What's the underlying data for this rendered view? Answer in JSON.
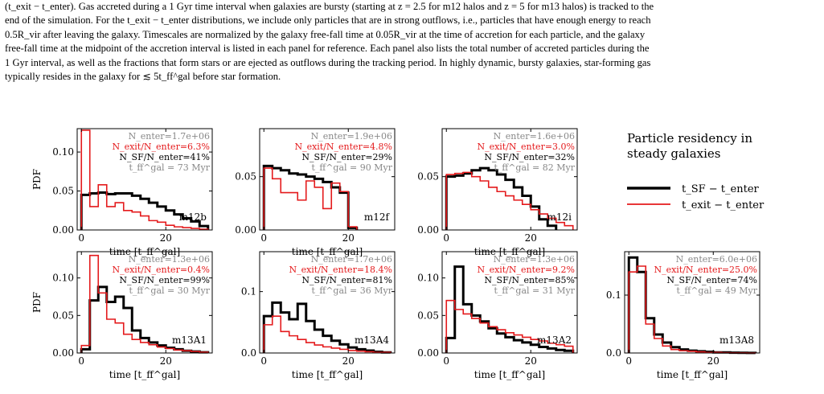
{
  "caption": {
    "lines": [
      "(t_exit − t_enter). Gas accreted during a 1 Gyr time interval when galaxies are bursty (starting at z = 2.5 for m12 halos and z = 5 for m13 halos) is tracked to the",
      "end of the simulation. For the t_exit − t_enter distributions, we include only particles that are in strong outflows, i.e., particles that have enough energy to reach",
      "0.5R_vir after leaving the galaxy. Timescales are normalized by the galaxy free-fall time at 0.05R_vir at the time of accretion for each particle, and the galaxy",
      "free-fall time at the midpoint of the accretion interval is listed in each panel for reference. Each panel also lists the total number of accreted particles during the",
      "1 Gyr interval, as well as the fractions that form stars or are ejected as outflows during the tracking period. In highly dynamic, bursty galaxies, star-forming gas",
      "typically resides in the galaxy for ≲ 5t_ff^gal before star formation."
    ]
  },
  "legend": {
    "title_line1": "Particle residency in",
    "title_line2": "steady galaxies",
    "entries": [
      {
        "label": "t_SF − t_enter",
        "color": "#000000"
      },
      {
        "label": "t_exit − t_enter",
        "color": "#e41a1c"
      }
    ]
  },
  "axes": {
    "xlabel": "time [t_ff^gal]",
    "ylabel": "PDF"
  },
  "chart_data": [
    {
      "type": "line",
      "panel": "m12b",
      "ylim": [
        0,
        0.13
      ],
      "yticks": [
        "0.00",
        "0.05",
        "0.10"
      ],
      "ytick_values": [
        0,
        0.05,
        0.1
      ],
      "xlim": [
        -1,
        31
      ],
      "xticks": [
        "0",
        "20"
      ],
      "n_enter": "N_enter=1.7e+06",
      "exit_frac": "N_exit/N_enter=6.3%",
      "sf_frac": "N_SF/N_enter=41%",
      "tff": "t_ff^gal = 73 Myr",
      "series": [
        {
          "name": "t_SF − t_enter",
          "color": "#000000",
          "edges": [
            0,
            2,
            4,
            6,
            8,
            10,
            12,
            14,
            16,
            18,
            20,
            22,
            24,
            26,
            28,
            30
          ],
          "values": [
            0.045,
            0.047,
            0.048,
            0.046,
            0.047,
            0.047,
            0.044,
            0.04,
            0.035,
            0.03,
            0.025,
            0.02,
            0.015,
            0.011,
            0.005
          ]
        },
        {
          "name": "t_exit − t_enter",
          "color": "#e41a1c",
          "edges": [
            0,
            2,
            4,
            6,
            8,
            10,
            12,
            14,
            16,
            18,
            20,
            22,
            24,
            26,
            28,
            30
          ],
          "values": [
            0.128,
            0.03,
            0.058,
            0.03,
            0.035,
            0.025,
            0.023,
            0.018,
            0.012,
            0.01,
            0.006,
            0.004,
            0.003,
            0.002,
            0.001
          ]
        }
      ]
    },
    {
      "type": "line",
      "panel": "m12f",
      "ylim": [
        0,
        0.095
      ],
      "yticks": [
        "0.00",
        "0.05"
      ],
      "ytick_values": [
        0,
        0.05
      ],
      "xlim": [
        -1,
        31
      ],
      "xticks": [
        "0",
        "20"
      ],
      "n_enter": "N_enter=1.9e+06",
      "exit_frac": "N_exit/N_enter=4.8%",
      "sf_frac": "N_SF/N_enter=29%",
      "tff": "t_ff^gal = 90 Myr",
      "series": [
        {
          "name": "t_SF − t_enter",
          "color": "#000000",
          "edges": [
            0,
            2,
            4,
            6,
            8,
            10,
            12,
            14,
            16,
            18,
            20,
            22
          ],
          "values": [
            0.06,
            0.058,
            0.056,
            0.053,
            0.052,
            0.05,
            0.048,
            0.045,
            0.04,
            0.035,
            0.002
          ]
        },
        {
          "name": "t_exit − t_enter",
          "color": "#e41a1c",
          "edges": [
            0,
            2,
            4,
            6,
            8,
            10,
            12,
            14,
            16,
            18,
            20,
            22
          ],
          "values": [
            0.058,
            0.048,
            0.035,
            0.035,
            0.028,
            0.046,
            0.04,
            0.02,
            0.044,
            0.036,
            0.003
          ]
        }
      ]
    },
    {
      "type": "line",
      "panel": "m12i",
      "ylim": [
        0,
        0.095
      ],
      "yticks": [
        "0.00",
        "0.05"
      ],
      "ytick_values": [
        0,
        0.05
      ],
      "xlim": [
        -1,
        31
      ],
      "xticks": [
        "0",
        "20"
      ],
      "n_enter": "N_enter=1.6e+06",
      "exit_frac": "N_exit/N_enter=3.0%",
      "sf_frac": "N_SF/N_enter=32%",
      "tff": "t_ff^gal = 82 Myr",
      "series": [
        {
          "name": "t_SF − t_enter",
          "color": "#000000",
          "edges": [
            0,
            2,
            4,
            6,
            8,
            10,
            12,
            14,
            16,
            18,
            20,
            22,
            24,
            26
          ],
          "values": [
            0.05,
            0.051,
            0.053,
            0.056,
            0.058,
            0.056,
            0.052,
            0.047,
            0.04,
            0.032,
            0.022,
            0.01,
            0.004
          ]
        },
        {
          "name": "t_exit − t_enter",
          "color": "#e41a1c",
          "edges": [
            0,
            2,
            4,
            6,
            8,
            10,
            12,
            14,
            16,
            18,
            20,
            22,
            24,
            26,
            28,
            30
          ],
          "values": [
            0.052,
            0.053,
            0.054,
            0.05,
            0.046,
            0.04,
            0.036,
            0.032,
            0.028,
            0.024,
            0.019,
            0.015,
            0.011,
            0.007,
            0.004
          ]
        }
      ]
    },
    {
      "type": "line",
      "panel": "m13A1",
      "ylim": [
        0,
        0.135
      ],
      "yticks": [
        "0.00",
        "0.05",
        "0.10"
      ],
      "ytick_values": [
        0,
        0.05,
        0.1
      ],
      "xlim": [
        -1,
        31
      ],
      "xticks": [
        "0",
        "20"
      ],
      "n_enter": "N_enter=1.3e+06",
      "exit_frac": "N_exit/N_enter=0.4%",
      "sf_frac": "N_SF/N_enter=99%",
      "tff": "t_ff^gal = 30 Myr",
      "series": [
        {
          "name": "t_SF − t_enter",
          "color": "#000000",
          "edges": [
            0,
            2,
            4,
            6,
            8,
            10,
            12,
            14,
            16,
            18,
            20,
            22,
            24,
            26,
            28,
            30
          ],
          "values": [
            0.005,
            0.07,
            0.088,
            0.068,
            0.075,
            0.06,
            0.03,
            0.02,
            0.014,
            0.01,
            0.007,
            0.005,
            0.003,
            0.002,
            0.001
          ]
        },
        {
          "name": "t_exit − t_enter",
          "color": "#e41a1c",
          "edges": [
            0,
            2,
            4,
            6,
            8,
            10,
            12,
            14,
            16,
            18,
            20,
            22,
            24,
            26,
            28,
            30
          ],
          "values": [
            0.01,
            0.13,
            0.08,
            0.045,
            0.04,
            0.025,
            0.018,
            0.014,
            0.011,
            0.008,
            0.006,
            0.004,
            0.003,
            0.002,
            0.001
          ]
        }
      ]
    },
    {
      "type": "line",
      "panel": "m13A4",
      "ylim": [
        0,
        0.165
      ],
      "yticks": [
        "0.0",
        "0.1"
      ],
      "ytick_values": [
        0,
        0.1
      ],
      "xlim": [
        -1,
        31
      ],
      "xticks": [
        "0",
        "20"
      ],
      "n_enter": "N_enter=1.7e+06",
      "exit_frac": "N_exit/N_enter=18.4%",
      "sf_frac": "N_SF/N_enter=81%",
      "tff": "t_ff^gal = 36 Myr",
      "series": [
        {
          "name": "t_SF − t_enter",
          "color": "#000000",
          "edges": [
            0,
            2,
            4,
            6,
            8,
            10,
            12,
            14,
            16,
            18,
            20,
            22,
            24,
            26,
            28,
            30
          ],
          "values": [
            0.06,
            0.082,
            0.066,
            0.055,
            0.08,
            0.052,
            0.038,
            0.028,
            0.02,
            0.014,
            0.009,
            0.006,
            0.004,
            0.002,
            0.001
          ]
        },
        {
          "name": "t_exit − t_enter",
          "color": "#e41a1c",
          "edges": [
            0,
            2,
            4,
            6,
            8,
            10,
            12,
            14,
            16,
            18,
            20,
            22,
            24,
            26,
            28,
            30
          ],
          "values": [
            0.046,
            0.06,
            0.035,
            0.028,
            0.022,
            0.017,
            0.013,
            0.01,
            0.008,
            0.006,
            0.004,
            0.003,
            0.002,
            0.001,
            0.001
          ]
        }
      ]
    },
    {
      "type": "line",
      "panel": "m13A2",
      "ylim": [
        0,
        0.135
      ],
      "yticks": [
        "0.00",
        "0.05",
        "0.10"
      ],
      "ytick_values": [
        0,
        0.05,
        0.1
      ],
      "xlim": [
        -1,
        31
      ],
      "xticks": [
        "0",
        "20"
      ],
      "n_enter": "N_enter=1.3e+06",
      "exit_frac": "N_exit/N_enter=9.2%",
      "sf_frac": "N_SF/N_enter=85%",
      "tff": "t_ff^gal = 31 Myr",
      "series": [
        {
          "name": "t_SF − t_enter",
          "color": "#000000",
          "edges": [
            0,
            2,
            4,
            6,
            8,
            10,
            12,
            14,
            16,
            18,
            20,
            22,
            24,
            26,
            28,
            30
          ],
          "values": [
            0.02,
            0.115,
            0.065,
            0.05,
            0.042,
            0.033,
            0.026,
            0.021,
            0.017,
            0.014,
            0.011,
            0.008,
            0.006,
            0.004,
            0.003
          ]
        },
        {
          "name": "t_exit − t_enter",
          "color": "#e41a1c",
          "edges": [
            0,
            2,
            4,
            6,
            8,
            10,
            12,
            14,
            16,
            18,
            20,
            22,
            24,
            26,
            28,
            30
          ],
          "values": [
            0.07,
            0.058,
            0.052,
            0.046,
            0.04,
            0.035,
            0.031,
            0.027,
            0.024,
            0.021,
            0.018,
            0.016,
            0.013,
            0.011,
            0.009
          ]
        }
      ]
    },
    {
      "type": "line",
      "panel": "m13A8",
      "ylim": [
        0,
        0.175
      ],
      "yticks": [
        "0.0",
        "0.1"
      ],
      "ytick_values": [
        0,
        0.1
      ],
      "xlim": [
        -1,
        31
      ],
      "xticks": [
        "0",
        "20"
      ],
      "n_enter": "N_enter=6.0e+06",
      "exit_frac": "N_exit/N_enter=25.0%",
      "sf_frac": "N_SF/N_enter=74%",
      "tff": "t_ff^gal = 49 Myr",
      "series": [
        {
          "name": "t_SF − t_enter",
          "color": "#000000",
          "edges": [
            0,
            2,
            4,
            6,
            8,
            10,
            12,
            14,
            16,
            18,
            20,
            22,
            24,
            26,
            28,
            30
          ],
          "values": [
            0.165,
            0.14,
            0.06,
            0.032,
            0.018,
            0.01,
            0.006,
            0.004,
            0.003,
            0.002,
            0.001,
            0.001,
            0.0005,
            0.0003,
            0.0002
          ]
        },
        {
          "name": "t_exit − t_enter",
          "color": "#e41a1c",
          "edges": [
            0,
            2,
            4,
            6,
            8,
            10,
            12,
            14,
            16,
            18,
            20,
            22,
            24,
            26,
            28,
            30
          ],
          "values": [
            0.14,
            0.15,
            0.05,
            0.025,
            0.012,
            0.006,
            0.004,
            0.003,
            0.002,
            0.001,
            0.001,
            0.0005,
            0.0003,
            0.0002,
            0.0001
          ]
        }
      ]
    }
  ]
}
